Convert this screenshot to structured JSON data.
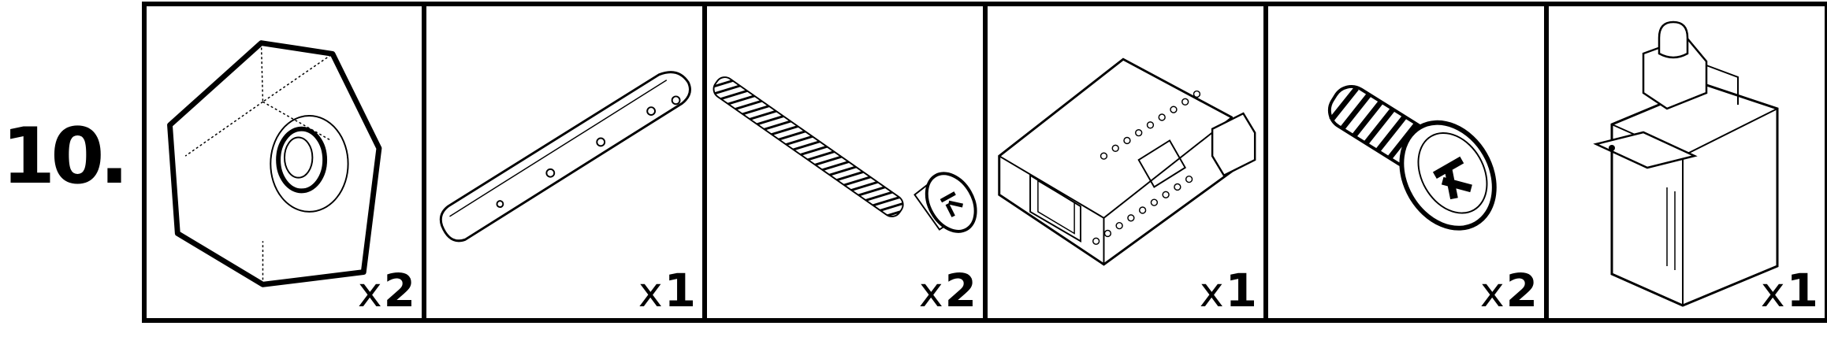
{
  "step": {
    "number": "10."
  },
  "parts": [
    {
      "icon": "hex-nut-icon",
      "multiplier": "x",
      "count": "2"
    },
    {
      "icon": "flat-bar-icon",
      "multiplier": "x",
      "count": "1"
    },
    {
      "icon": "long-screw-icon",
      "multiplier": "x",
      "count": "2"
    },
    {
      "icon": "board-icon",
      "multiplier": "x",
      "count": "1"
    },
    {
      "icon": "short-screw-icon",
      "multiplier": "x",
      "count": "2"
    },
    {
      "icon": "servo-icon",
      "multiplier": "x",
      "count": "1"
    }
  ]
}
